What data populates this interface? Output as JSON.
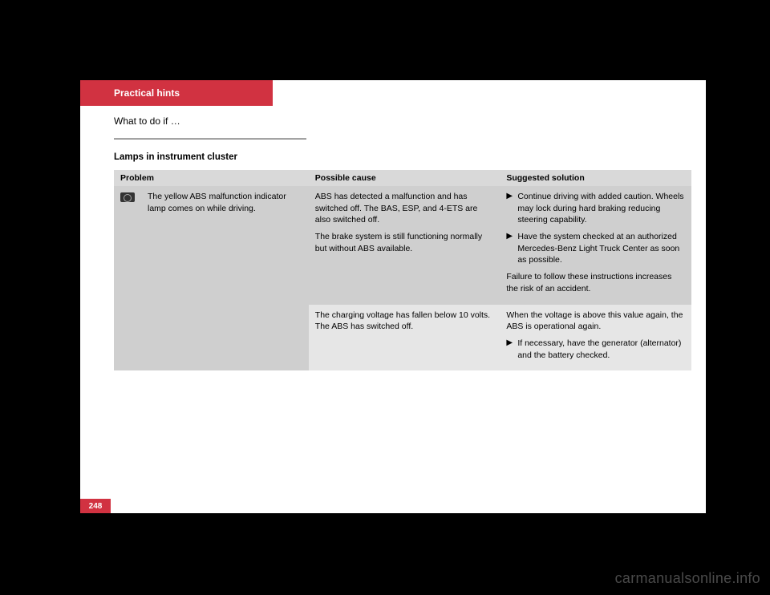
{
  "tab_title": "Practical hints",
  "section_title": "What to do if …",
  "subsection_title": "Lamps in instrument cluster",
  "page_number": "248",
  "watermark": "carmanualsonline.info",
  "table": {
    "headers": {
      "problem": "Problem",
      "cause": "Possible cause",
      "solution": "Suggested solution"
    },
    "problem_text": "The yellow ABS malfunction indicator lamp comes on while driving.",
    "icon_name": "abs-warning-icon",
    "row1": {
      "cause_p1": "ABS has detected a malfunction and has switched off. The BAS, ESP, and 4-ETS are also switched off.",
      "cause_p2": "The brake system is still functioning normally but without ABS available.",
      "sol_b1": "Continue driving with added caution. Wheels may lock during hard braking reducing steering capability.",
      "sol_b2": "Have the system checked at an authorized Mercedes-Benz Light Truck Center as soon as possible.",
      "sol_p1": "Failure to follow these instructions increases the risk of an accident."
    },
    "row2": {
      "cause_p1": "The charging voltage has fallen below 10 volts. The ABS has switched off.",
      "sol_p1": "When the voltage is above this value again, the ABS is operational again.",
      "sol_b1": "If necessary, have the generator (alternator) and the battery checked."
    }
  }
}
